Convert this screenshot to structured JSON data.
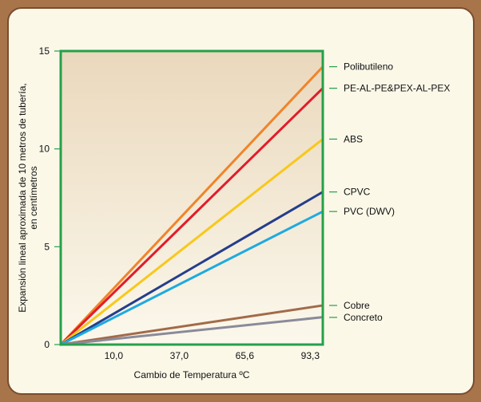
{
  "chart_data": {
    "type": "line",
    "xlabel": "Cambio de Temperatura ºC",
    "ylabel_line1": "Expansión lineal aproximada de 10 metros de tubería,",
    "ylabel_line2": "en centímetros",
    "x_tick_labels": [
      "10,0",
      "37,0",
      "65,6",
      "93,3"
    ],
    "x_tick_positions": [
      1,
      2,
      3,
      4
    ],
    "xlim": [
      0,
      4
    ],
    "ylim": [
      0,
      15
    ],
    "y_ticks": [
      0,
      5,
      10,
      15
    ],
    "y_tick_labels": [
      "0",
      "5",
      "10",
      "15"
    ],
    "grid": false,
    "legend_position": "right",
    "series": [
      {
        "name": "Polibutileno",
        "color": "#f0842a",
        "x": [
          0,
          4
        ],
        "y": [
          0,
          14.2
        ]
      },
      {
        "name": "PE-AL-PE&PEX-AL-PEX",
        "color": "#e21c2a",
        "x": [
          0,
          4
        ],
        "y": [
          0,
          13.1
        ]
      },
      {
        "name": "ABS",
        "color": "#f8c81c",
        "x": [
          0,
          4
        ],
        "y": [
          0,
          10.5
        ]
      },
      {
        "name": "CPVC",
        "color": "#243e8c",
        "x": [
          0,
          4
        ],
        "y": [
          0,
          7.8
        ]
      },
      {
        "name": "PVC (DWV)",
        "color": "#1eaae0",
        "x": [
          0,
          4
        ],
        "y": [
          0,
          6.8
        ]
      },
      {
        "name": "Cobre",
        "color": "#a26a48",
        "x": [
          0,
          4
        ],
        "y": [
          0,
          2.0
        ]
      },
      {
        "name": "Concreto",
        "color": "#8a8a9a",
        "x": [
          0,
          4
        ],
        "y": [
          0,
          1.4
        ]
      }
    ],
    "colors": {
      "frame": "#25a04a",
      "bg_top": "#ead8bc",
      "bg_bottom": "#fbf8ec"
    }
  }
}
